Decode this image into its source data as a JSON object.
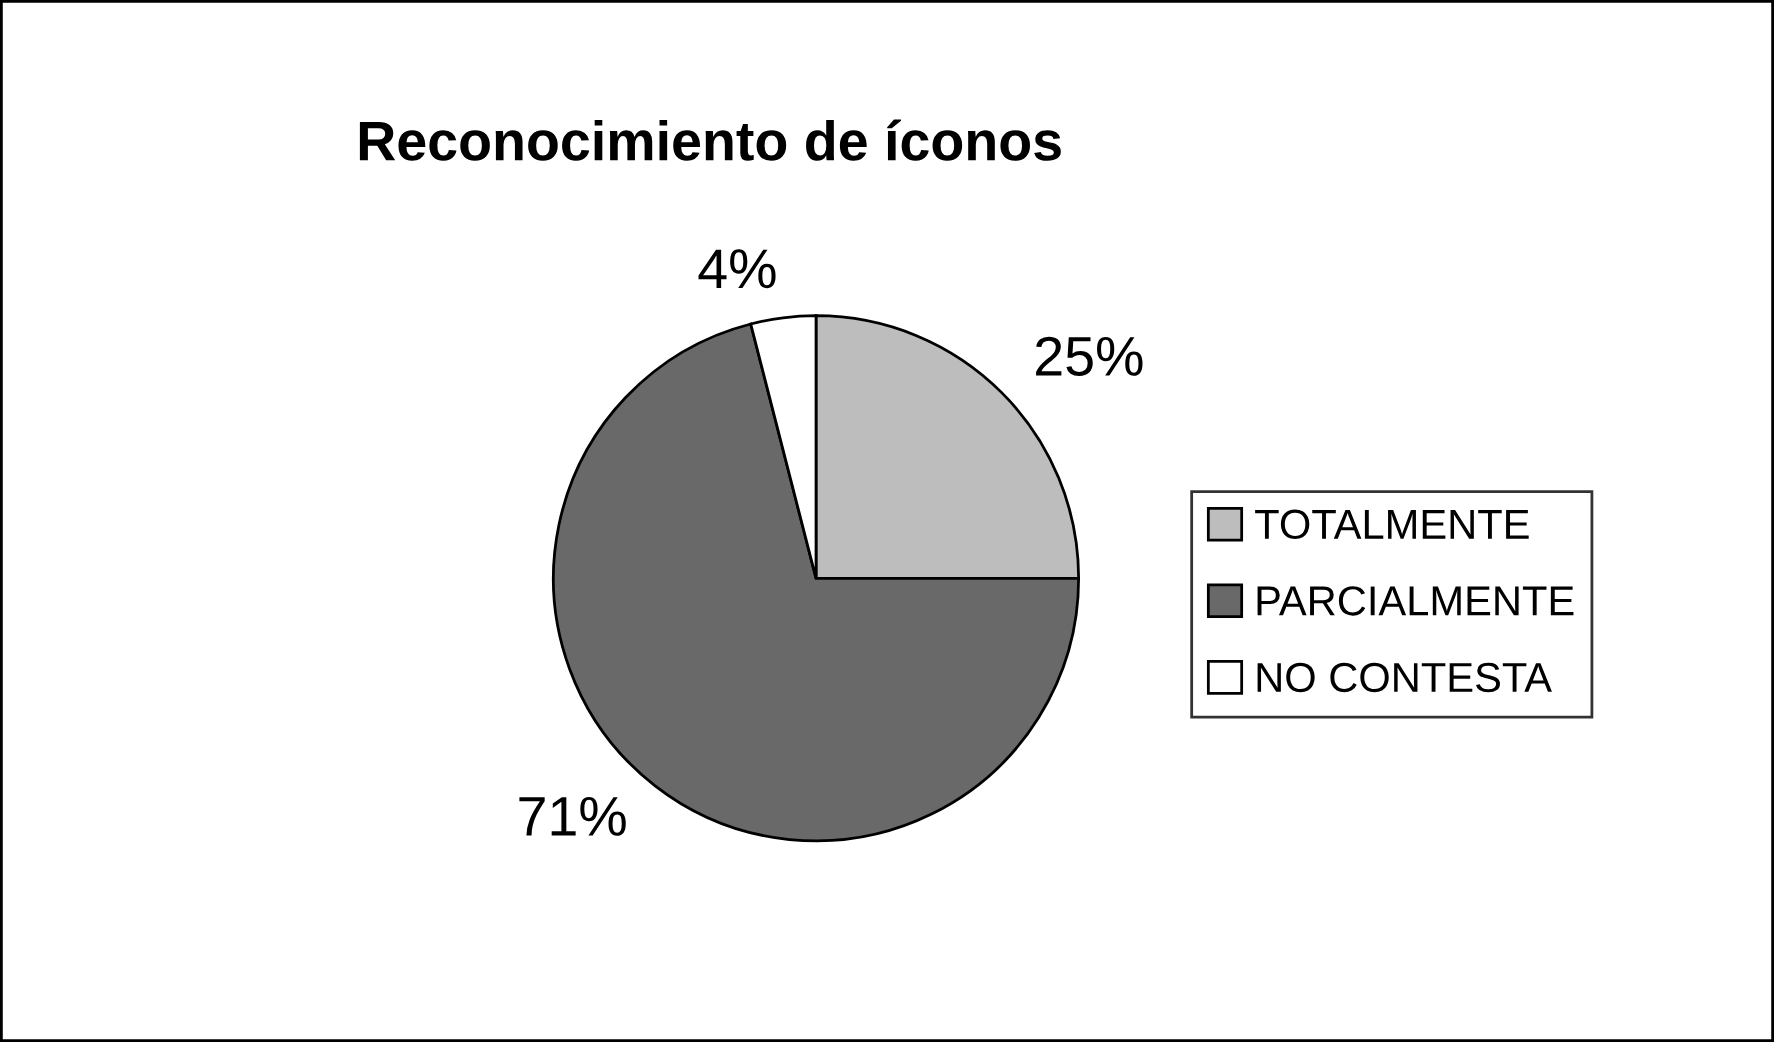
{
  "chart_data": {
    "type": "pie",
    "title": "Reconocimiento de íconos",
    "categories": [
      "TOTALMENTE",
      "PARCIALMENTE",
      "NO CONTESTA"
    ],
    "values": [
      25,
      71,
      4
    ],
    "colors": [
      "#bdbdbd",
      "#696969",
      "#ffffff"
    ],
    "value_labels": [
      "25%",
      "71%",
      "4%"
    ],
    "legend": "right"
  }
}
